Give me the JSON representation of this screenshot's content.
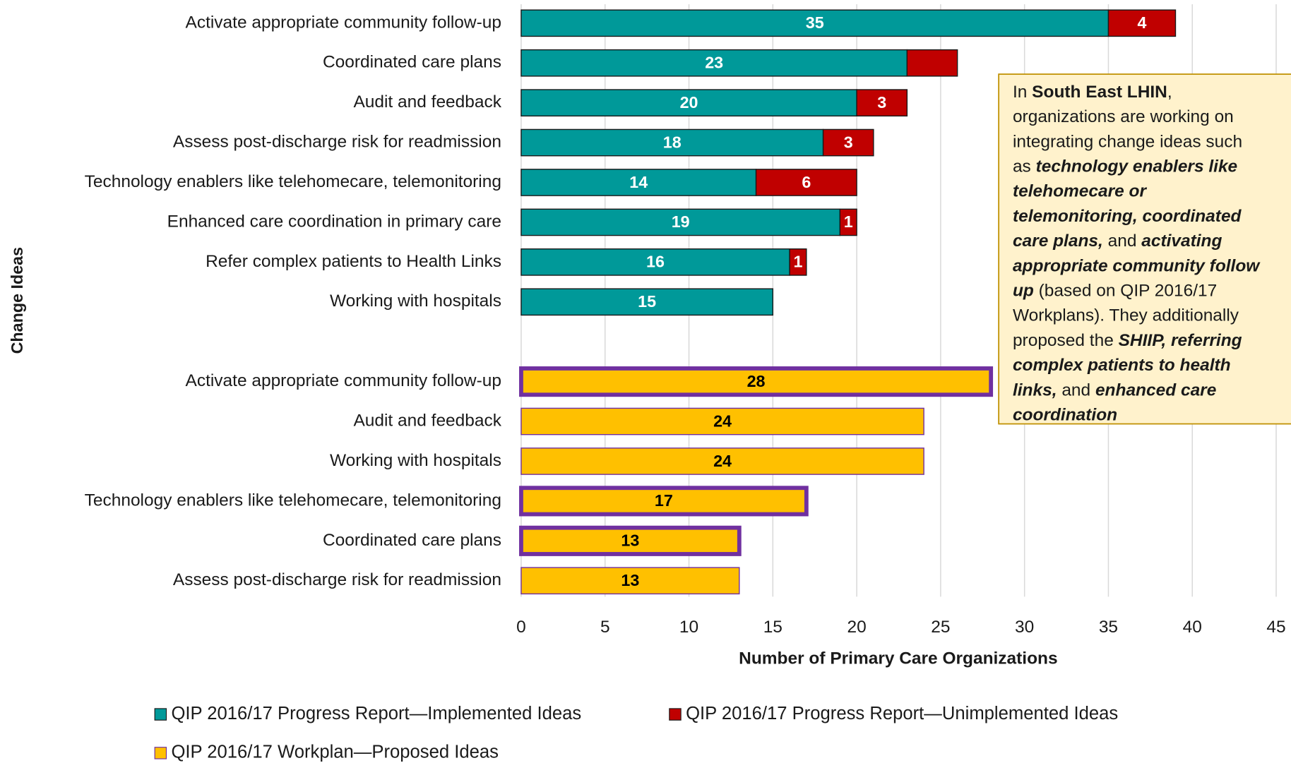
{
  "chart_data": {
    "type": "stacked_barh",
    "xlabel": "Number of Primary Care Organizations",
    "ylabel": "Change Ideas",
    "categories": [
      "Activate appropriate community follow-up",
      "Coordinated care plans",
      "Audit and feedback",
      "Assess post-discharge risk for readmission",
      "Technology enablers like telehomecare, telemonitoring",
      "Enhanced care coordination in primary care",
      "Refer complex patients to Health Links",
      "Working with hospitals",
      null,
      "Activate appropriate community follow-up",
      "Audit and feedback",
      "Working with hospitals",
      "Technology enablers like telehomecare, telemonitoring",
      "Coordinated care plans",
      "Assess post-discharge risk for readmission"
    ],
    "series": [
      {
        "name": "QIP 2016/17 Progress Report—Implemented Ideas",
        "color": "#009999",
        "border": "#1a1a1a",
        "label_color": "#ffffff",
        "values": [
          35,
          23,
          20,
          18,
          14,
          19,
          16,
          15,
          null,
          null,
          null,
          null,
          null,
          null,
          null
        ]
      },
      {
        "name": "QIP 2016/17 Progress Report—Unimplemented Ideas",
        "color": "#c00000",
        "border": "#1a1a1a",
        "label_color": "#ffffff",
        "values": [
          4,
          3,
          3,
          3,
          6,
          1,
          1,
          null,
          null,
          null,
          null,
          null,
          null,
          null,
          null
        ],
        "value_labels": [
          "4",
          null,
          "3",
          "3",
          "6",
          "1",
          "1",
          null,
          null,
          null,
          null,
          null,
          null,
          null,
          null
        ]
      },
      {
        "name": "QIP 2016/17 Workplan—Proposed Ideas",
        "color": "#ffc000",
        "border": "#7030a0",
        "label_color": "#000000",
        "values": [
          null,
          null,
          null,
          null,
          null,
          null,
          null,
          null,
          null,
          28,
          24,
          24,
          17,
          13,
          13
        ],
        "highlighted": [
          false,
          false,
          false,
          false,
          false,
          false,
          false,
          false,
          false,
          true,
          false,
          false,
          true,
          true,
          false
        ]
      }
    ],
    "highlight_color": "#7030a0",
    "xlim": [
      0,
      45
    ],
    "xticks": [
      0,
      5,
      10,
      15,
      20,
      25,
      30,
      35,
      40,
      45
    ],
    "grid": true,
    "legend": "bottom",
    "annotation": {
      "lines": [
        [
          {
            "text": "In "
          },
          {
            "text": "South East LHIN",
            "bold": true
          },
          {
            "text": ","
          }
        ],
        [
          {
            "text": "organizations are working on"
          }
        ],
        [
          {
            "text": "integrating change ideas such"
          }
        ],
        [
          {
            "text": "as "
          },
          {
            "text": "technology enablers like",
            "bold": true,
            "italic": true
          }
        ],
        [
          {
            "text": "telehomecare or",
            "bold": true,
            "italic": true
          }
        ],
        [
          {
            "text": "telemonitoring, coordinated",
            "bold": true,
            "italic": true
          }
        ],
        [
          {
            "text": "care plans,",
            "bold": true,
            "italic": true
          },
          {
            "text": " and "
          },
          {
            "text": "activating",
            "bold": true,
            "italic": true
          }
        ],
        [
          {
            "text": "appropriate community follow",
            "bold": true,
            "italic": true
          }
        ],
        [
          {
            "text": "up",
            "bold": true,
            "italic": true
          },
          {
            "text": " (based on QIP 2016/17"
          }
        ],
        [
          {
            "text": "Workplans). They additionally"
          }
        ],
        [
          {
            "text": "proposed the "
          },
          {
            "text": "SHIIP, referring",
            "bold": true,
            "italic": true
          }
        ],
        [
          {
            "text": "complex patients to health",
            "bold": true,
            "italic": true
          }
        ],
        [
          {
            "text": "links,",
            "bold": true,
            "italic": true
          },
          {
            "text": " and "
          },
          {
            "text": "enhanced care",
            "bold": true,
            "italic": true
          }
        ],
        [
          {
            "text": "coordination",
            "bold": true,
            "italic": true
          }
        ]
      ]
    }
  }
}
